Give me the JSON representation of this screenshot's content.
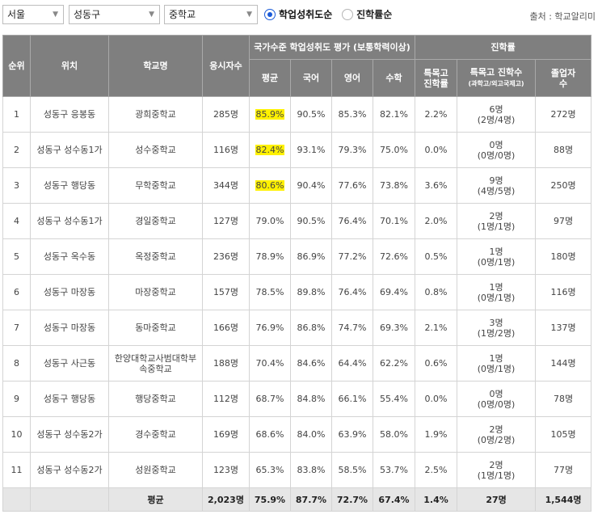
{
  "filters": {
    "region": "서울",
    "district": "성동구",
    "school_type": "중학교"
  },
  "sort": {
    "options": [
      {
        "label": "학업성취도순",
        "selected": true
      },
      {
        "label": "진학률순",
        "selected": false
      }
    ]
  },
  "source": "출처 : 학교알리미",
  "headers": {
    "rank": "순위",
    "location": "위치",
    "school": "학교명",
    "examinees": "응시자수",
    "achievement_group": "국가수준 학업성취도 평가 (보통학력이상)",
    "avg": "평균",
    "korean": "국어",
    "english": "영어",
    "math": "수학",
    "advancement_group": "진학률",
    "special_rate_l1": "특목고",
    "special_rate_l2": "진학률",
    "special_count_l1": "특목고 진학수",
    "special_count_l2": "(과학고/외고국제고)",
    "graduates_l1": "졸업자",
    "graduates_l2": "수"
  },
  "rows": [
    {
      "rank": "1",
      "location": "성동구 응봉동",
      "school": "광희중학교",
      "examinees": "285명",
      "avg": "85.9%",
      "korean": "90.5%",
      "english": "85.3%",
      "math": "82.1%",
      "special_rate": "2.2%",
      "special_count": "6명",
      "special_detail": "(2명/4명)",
      "graduates": "272명"
    },
    {
      "rank": "2",
      "location": "성동구 성수동1가",
      "school": "성수중학교",
      "examinees": "116명",
      "avg": "82.4%",
      "korean": "93.1%",
      "english": "79.3%",
      "math": "75.0%",
      "special_rate": "0.0%",
      "special_count": "0명",
      "special_detail": "(0명/0명)",
      "graduates": "88명"
    },
    {
      "rank": "3",
      "location": "성동구 행당동",
      "school": "무학중학교",
      "examinees": "344명",
      "avg": "80.6%",
      "korean": "90.4%",
      "english": "77.6%",
      "math": "73.8%",
      "special_rate": "3.6%",
      "special_count": "9명",
      "special_detail": "(4명/5명)",
      "graduates": "250명"
    },
    {
      "rank": "4",
      "location": "성동구 성수동1가",
      "school": "경일중학교",
      "examinees": "127명",
      "avg": "79.0%",
      "korean": "90.5%",
      "english": "76.4%",
      "math": "70.1%",
      "special_rate": "2.0%",
      "special_count": "2명",
      "special_detail": "(1명/1명)",
      "graduates": "97명"
    },
    {
      "rank": "5",
      "location": "성동구 옥수동",
      "school": "옥정중학교",
      "examinees": "236명",
      "avg": "78.9%",
      "korean": "86.9%",
      "english": "77.2%",
      "math": "72.6%",
      "special_rate": "0.5%",
      "special_count": "1명",
      "special_detail": "(0명/1명)",
      "graduates": "180명"
    },
    {
      "rank": "6",
      "location": "성동구 마장동",
      "school": "마장중학교",
      "examinees": "157명",
      "avg": "78.5%",
      "korean": "89.8%",
      "english": "76.4%",
      "math": "69.4%",
      "special_rate": "0.8%",
      "special_count": "1명",
      "special_detail": "(0명/1명)",
      "graduates": "116명"
    },
    {
      "rank": "7",
      "location": "성동구 마장동",
      "school": "동마중학교",
      "examinees": "166명",
      "avg": "76.9%",
      "korean": "86.8%",
      "english": "74.7%",
      "math": "69.3%",
      "special_rate": "2.1%",
      "special_count": "3명",
      "special_detail": "(1명/2명)",
      "graduates": "137명"
    },
    {
      "rank": "8",
      "location": "성동구 사근동",
      "school": "한양대학교사범대학부속중학교",
      "examinees": "188명",
      "avg": "70.4%",
      "korean": "84.6%",
      "english": "64.4%",
      "math": "62.2%",
      "special_rate": "0.6%",
      "special_count": "1명",
      "special_detail": "(0명/1명)",
      "graduates": "144명"
    },
    {
      "rank": "9",
      "location": "성동구 행당동",
      "school": "행당중학교",
      "examinees": "112명",
      "avg": "68.7%",
      "korean": "84.8%",
      "english": "66.1%",
      "math": "55.4%",
      "special_rate": "0.0%",
      "special_count": "0명",
      "special_detail": "(0명/0명)",
      "graduates": "78명"
    },
    {
      "rank": "10",
      "location": "성동구 성수동2가",
      "school": "경수중학교",
      "examinees": "169명",
      "avg": "68.6%",
      "korean": "84.0%",
      "english": "63.9%",
      "math": "58.0%",
      "special_rate": "1.9%",
      "special_count": "2명",
      "special_detail": "(0명/2명)",
      "graduates": "105명"
    },
    {
      "rank": "11",
      "location": "성동구 성수동2가",
      "school": "성원중학교",
      "examinees": "123명",
      "avg": "65.3%",
      "korean": "83.8%",
      "english": "58.5%",
      "math": "53.7%",
      "special_rate": "2.5%",
      "special_count": "2명",
      "special_detail": "(1명/1명)",
      "graduates": "77명"
    }
  ],
  "highlight_colour": "#fff100",
  "average_row": {
    "label": "평균",
    "examinees": "2,023명",
    "avg": "75.9%",
    "korean": "87.7%",
    "english": "72.7%",
    "math": "67.4%",
    "special_rate": "1.4%",
    "special_count": "27명",
    "graduates": "1,544명"
  }
}
